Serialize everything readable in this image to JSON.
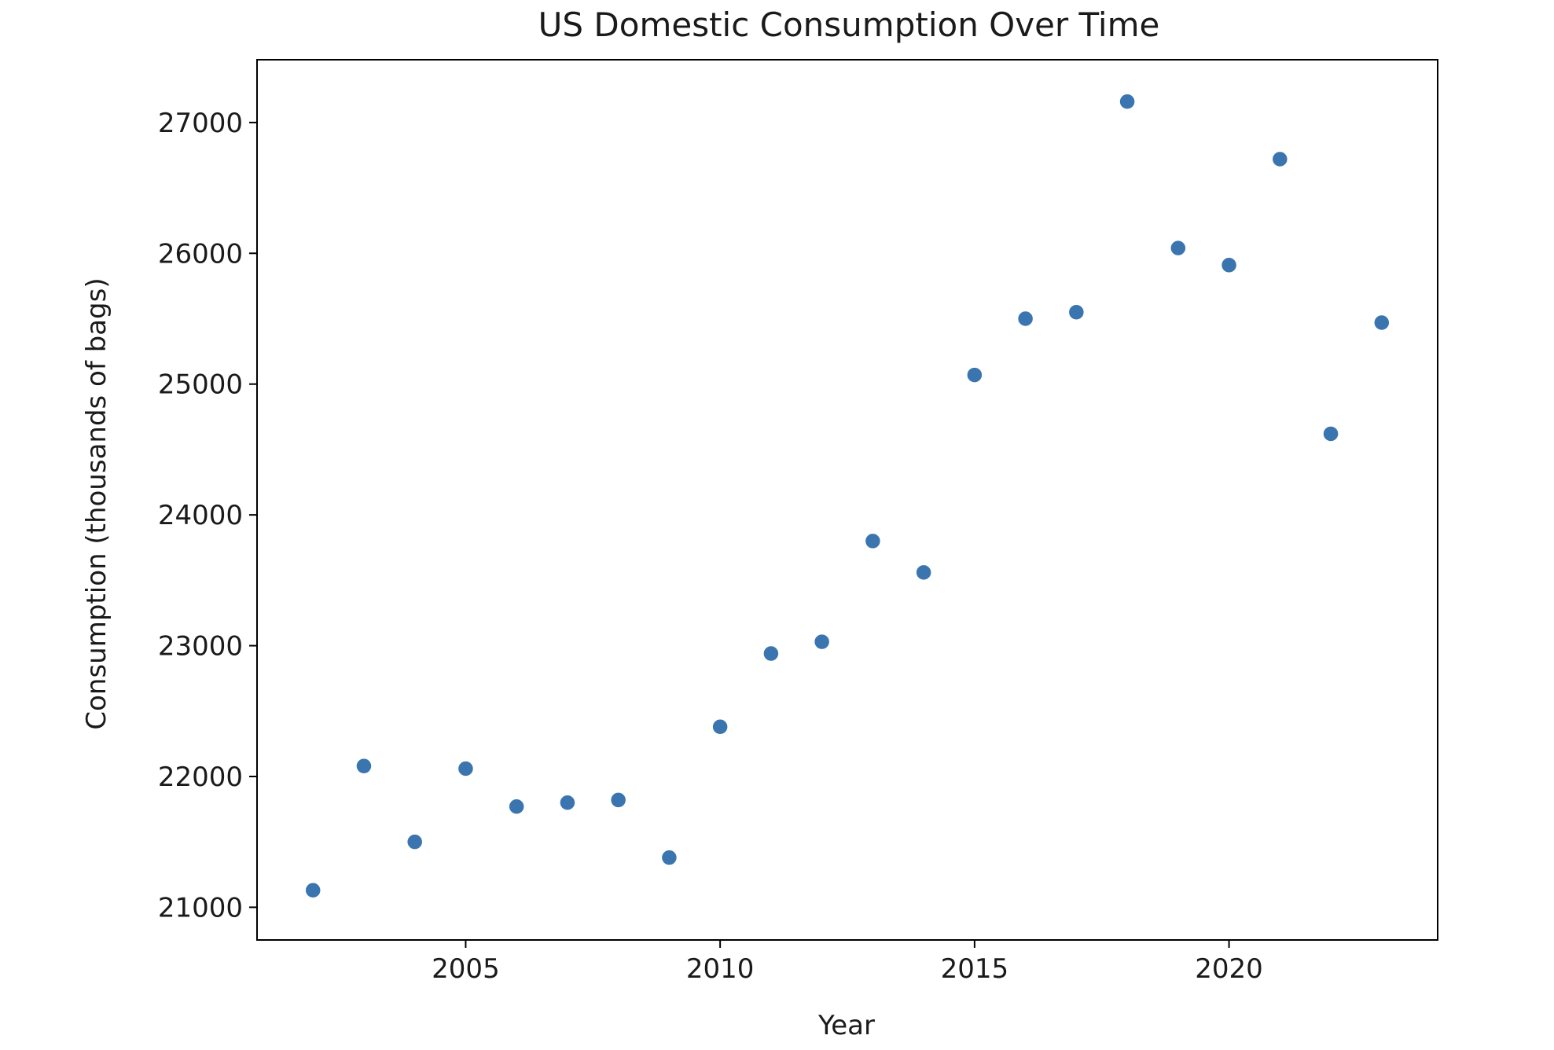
{
  "chart_data": {
    "type": "scatter",
    "title": "US Domestic Consumption Over Time",
    "xlabel": "Year",
    "ylabel": "Consumption (thousands of bags)",
    "xlim": [
      2000.9,
      2024.1
    ],
    "ylim": [
      20750,
      27480
    ],
    "xticks": [
      2005,
      2010,
      2015,
      2020
    ],
    "yticks": [
      21000,
      22000,
      23000,
      24000,
      25000,
      26000,
      27000
    ],
    "grid": false,
    "legend": "none",
    "point_color": "#3b75af",
    "points": [
      {
        "x": 2002,
        "y": 21130
      },
      {
        "x": 2003,
        "y": 22080
      },
      {
        "x": 2004,
        "y": 21500
      },
      {
        "x": 2005,
        "y": 22060
      },
      {
        "x": 2006,
        "y": 21770
      },
      {
        "x": 2007,
        "y": 21800
      },
      {
        "x": 2008,
        "y": 21820
      },
      {
        "x": 2009,
        "y": 21380
      },
      {
        "x": 2010,
        "y": 22380
      },
      {
        "x": 2011,
        "y": 22940
      },
      {
        "x": 2012,
        "y": 23030
      },
      {
        "x": 2013,
        "y": 23800
      },
      {
        "x": 2014,
        "y": 23560
      },
      {
        "x": 2015,
        "y": 25070
      },
      {
        "x": 2016,
        "y": 25500
      },
      {
        "x": 2017,
        "y": 25550
      },
      {
        "x": 2018,
        "y": 27160
      },
      {
        "x": 2019,
        "y": 26040
      },
      {
        "x": 2020,
        "y": 25910
      },
      {
        "x": 2021,
        "y": 26720
      },
      {
        "x": 2022,
        "y": 24620
      },
      {
        "x": 2023,
        "y": 25470
      }
    ]
  }
}
